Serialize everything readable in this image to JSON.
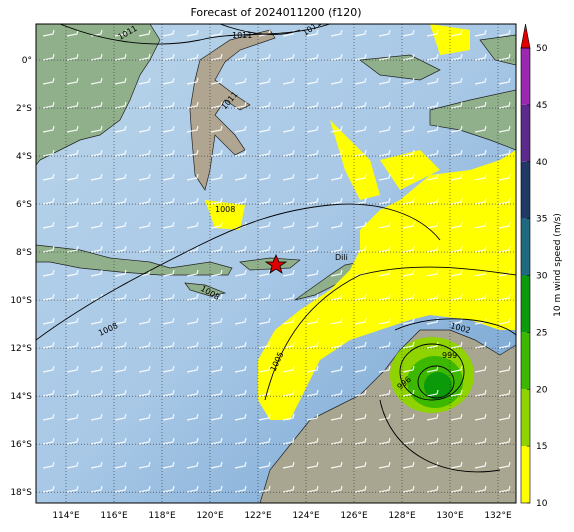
{
  "chart_data": {
    "type": "map",
    "title": "Forecast of 2024011200 (f120)",
    "xlim": [
      112.75,
      132.75
    ],
    "ylim": [
      -18.45,
      1.5
    ],
    "xticks": [
      {
        "value": 114,
        "label": "114°E"
      },
      {
        "value": 116,
        "label": "116°E"
      },
      {
        "value": 118,
        "label": "118°E"
      },
      {
        "value": 120,
        "label": "120°E"
      },
      {
        "value": 122,
        "label": "122°E"
      },
      {
        "value": 124,
        "label": "124°E"
      },
      {
        "value": 126,
        "label": "126°E"
      },
      {
        "value": 128,
        "label": "128°E"
      },
      {
        "value": 130,
        "label": "130°E"
      },
      {
        "value": 132,
        "label": "132°E"
      }
    ],
    "yticks": [
      {
        "value": 0,
        "label": "0°"
      },
      {
        "value": -2,
        "label": "2°S"
      },
      {
        "value": -4,
        "label": "4°S"
      },
      {
        "value": -6,
        "label": "6°S"
      },
      {
        "value": -8,
        "label": "8°S"
      },
      {
        "value": -10,
        "label": "10°S"
      },
      {
        "value": -12,
        "label": "12°S"
      },
      {
        "value": -14,
        "label": "14°S"
      },
      {
        "value": -16,
        "label": "16°S"
      },
      {
        "value": -18,
        "label": "18°S"
      }
    ],
    "grid": true,
    "colorbar": {
      "label": "10 m wind speed (m/s)",
      "lim": [
        10,
        50
      ],
      "ticks": [
        10,
        15,
        20,
        25,
        30,
        35,
        40,
        45,
        50
      ],
      "colors": [
        "#ffff00",
        "#8fd400",
        "#3cb800",
        "#0a9a0a",
        "#1f6a80",
        "#203a66",
        "#5b2a8c",
        "#9c27b0"
      ],
      "extend_color": "#e00000"
    },
    "isobar_labels": [
      1011,
      1011,
      1011,
      1011,
      1008,
      1008,
      1008,
      1005,
      1002,
      999,
      996
    ],
    "place_labels": [
      "Dili"
    ]
  }
}
